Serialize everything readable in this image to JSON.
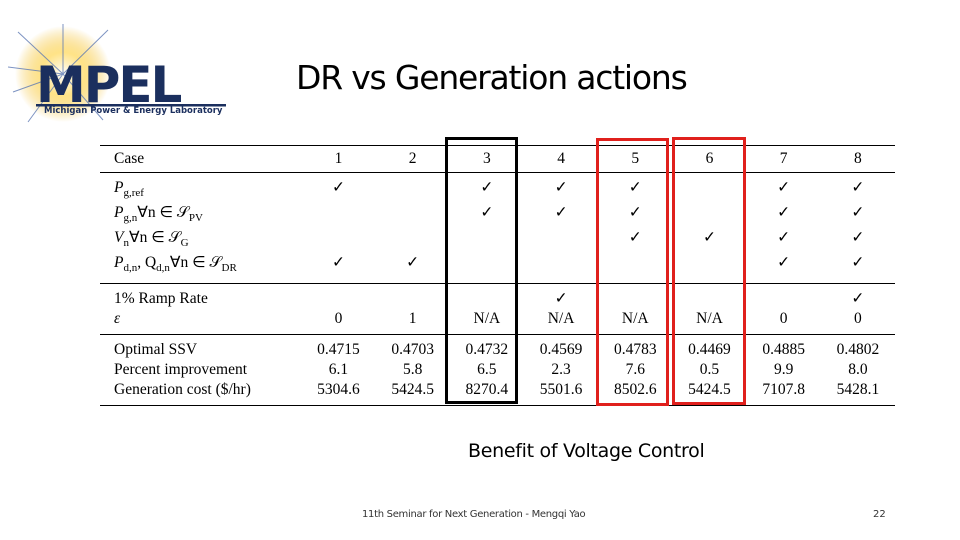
{
  "logo": {
    "wordmark": "MPEL",
    "subtitle": "Michigan Power & Energy Laboratory",
    "accent_color": "#f0b81c",
    "brand_color": "#1b2f5e"
  },
  "title": "DR vs Generation actions",
  "table": {
    "case_label": "Case",
    "cases": [
      "1",
      "2",
      "3",
      "4",
      "5",
      "6",
      "7",
      "8"
    ],
    "row_labels": {
      "pg_ref": "P",
      "pg_ref_sub": "g,ref",
      "pgn": "P",
      "pgn_sub": "g,n",
      "pgn_rest": "∀n ∈ 𝒮",
      "pgn_set_sub": "PV",
      "vn": "V",
      "vn_sub": "n",
      "vn_rest": "∀n ∈ 𝒮",
      "vn_set_sub": "G",
      "pdn": "P",
      "pdn_sub": "d,n",
      "pdn_mid": ", Q",
      "qdn_sub": "d,n",
      "pdn_rest": "∀n ∈ 𝒮",
      "pdn_set_sub": "DR",
      "ramp": "1% Ramp Rate",
      "epsilon": "ε",
      "ssv": "Optimal SSV",
      "improvement": "Percent improvement",
      "gencost": "Generation cost ($/hr)"
    },
    "check_mark": "✓",
    "rows": {
      "pg_ref": [
        "✓",
        "",
        "✓",
        "✓",
        "✓",
        "",
        "✓",
        "✓"
      ],
      "pgn": [
        "",
        "",
        "✓",
        "✓",
        "✓",
        "",
        "✓",
        "✓"
      ],
      "vn": [
        "",
        "",
        "",
        "",
        "✓",
        "✓",
        "✓",
        "✓"
      ],
      "pdn": [
        "✓",
        "✓",
        "",
        "",
        "",
        "",
        "✓",
        "✓"
      ],
      "ramp": [
        "",
        "",
        "",
        "✓",
        "",
        "",
        "",
        "✓"
      ],
      "epsilon": [
        "0",
        "1",
        "N/A",
        "N/A",
        "N/A",
        "N/A",
        "0",
        "0"
      ],
      "ssv": [
        "0.4715",
        "0.4703",
        "0.4732",
        "0.4569",
        "0.4783",
        "0.4469",
        "0.4885",
        "0.4802"
      ],
      "improvement": [
        "6.1",
        "5.8",
        "6.5",
        "2.3",
        "7.6",
        "0.5",
        "9.9",
        "8.0"
      ],
      "gencost": [
        "5304.6",
        "5424.5",
        "8270.4",
        "5501.6",
        "8502.6",
        "5424.5",
        "7107.8",
        "5428.1"
      ]
    },
    "highlight_colors": {
      "black": "#000000",
      "red": "#e0201c"
    }
  },
  "caption": "Benefit of Voltage Control",
  "footer": "11th Seminar for Next Generation - Mengqi Yao",
  "page_number": "22"
}
